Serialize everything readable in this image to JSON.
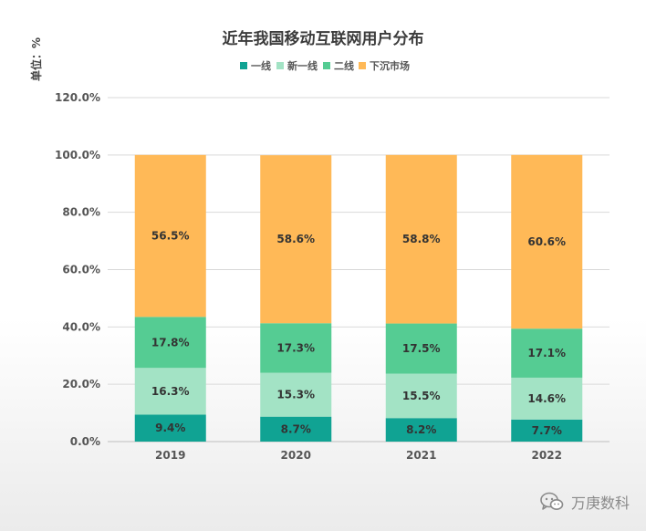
{
  "chart_data": {
    "type": "bar",
    "stacked": true,
    "title": "近年我国移动互联网用户分布",
    "unit_label": "单位：%",
    "categories": [
      "2019",
      "2020",
      "2021",
      "2022"
    ],
    "series": [
      {
        "name": "一线",
        "color": "#10a393",
        "values": [
          9.4,
          8.7,
          8.2,
          7.7
        ],
        "labels": [
          "9.4%",
          "8.7%",
          "8.2%",
          "7.7%"
        ]
      },
      {
        "name": "新一线",
        "color": "#a3e3c5",
        "values": [
          16.3,
          15.3,
          15.5,
          14.6
        ],
        "labels": [
          "16.3%",
          "15.3%",
          "15.5%",
          "14.6%"
        ]
      },
      {
        "name": "二线",
        "color": "#55cc93",
        "values": [
          17.8,
          17.3,
          17.5,
          17.1
        ],
        "labels": [
          "17.8%",
          "17.3%",
          "17.5%",
          "17.1%"
        ]
      },
      {
        "name": "下沉市场",
        "color": "#ffb957",
        "values": [
          56.5,
          58.6,
          58.8,
          60.6
        ],
        "labels": [
          "56.5%",
          "58.6%",
          "58.8%",
          "60.6%"
        ]
      }
    ],
    "ylim": [
      0,
      120
    ],
    "yticks": [
      0,
      20,
      40,
      60,
      80,
      100,
      120
    ],
    "ytick_labels": [
      "0.0%",
      "20.0%",
      "40.0%",
      "60.0%",
      "80.0%",
      "100.0%",
      "120.0%"
    ],
    "legend_position": "top",
    "grid": true
  },
  "watermark": {
    "text": "万庚数科",
    "icon": "wechat-icon"
  }
}
